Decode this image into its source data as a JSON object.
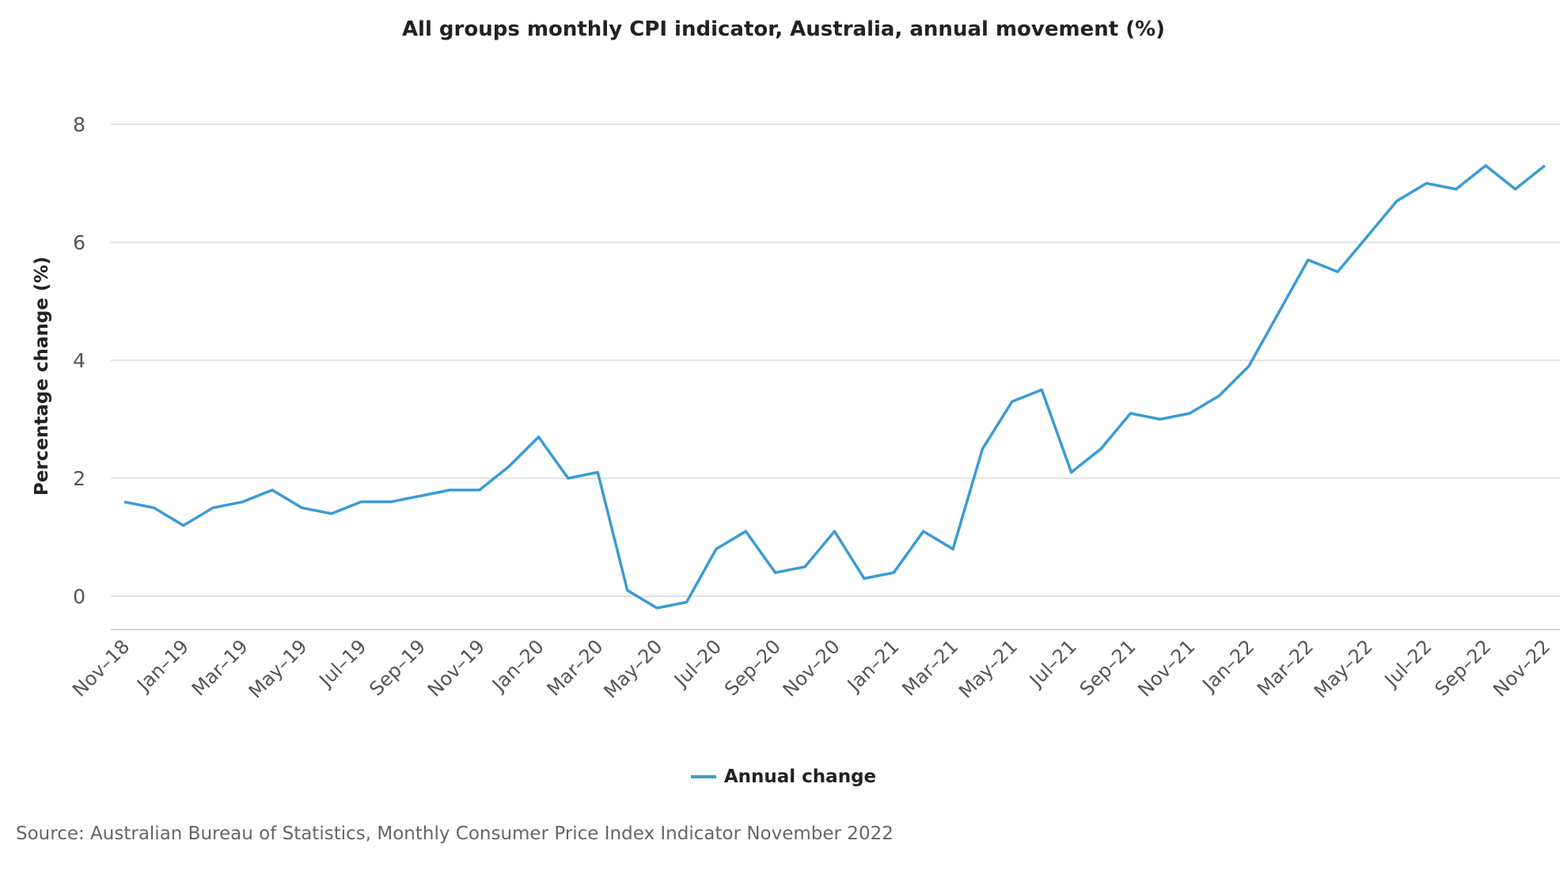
{
  "chart_data": {
    "type": "line",
    "title": "All groups monthly CPI indicator, Australia, annual movement (%)",
    "xlabel": "",
    "ylabel": "Percentage change (%)",
    "ylim": [
      -0.6,
      8
    ],
    "yticks": [
      0,
      2,
      4,
      6,
      8
    ],
    "grid": true,
    "legend": "bottom-center",
    "x": [
      "Nov-18",
      "Dec-18",
      "Jan-19",
      "Feb-19",
      "Mar-19",
      "Apr-19",
      "May-19",
      "Jun-19",
      "Jul-19",
      "Aug-19",
      "Sep-19",
      "Oct-19",
      "Nov-19",
      "Dec-19",
      "Jan-20",
      "Feb-20",
      "Mar-20",
      "Apr-20",
      "May-20",
      "Jun-20",
      "Jul-20",
      "Aug-20",
      "Sep-20",
      "Oct-20",
      "Nov-20",
      "Dec-20",
      "Jan-21",
      "Feb-21",
      "Mar-21",
      "Apr-21",
      "May-21",
      "Jun-21",
      "Jul-21",
      "Aug-21",
      "Sep-21",
      "Oct-21",
      "Nov-21",
      "Dec-21",
      "Jan-22",
      "Feb-22",
      "Mar-22",
      "Apr-22",
      "May-22",
      "Jun-22",
      "Jul-22",
      "Aug-22",
      "Sep-22",
      "Oct-22",
      "Nov-22"
    ],
    "xtick_labels": [
      "Nov–18",
      "Jan–19",
      "Mar–19",
      "May–19",
      "Jul–19",
      "Sep–19",
      "Nov–19",
      "Jan–20",
      "Mar–20",
      "May–20",
      "Jul–20",
      "Sep–20",
      "Nov–20",
      "Jan–21",
      "Mar–21",
      "May–21",
      "Jul–21",
      "Sep–21",
      "Nov–21",
      "Jan–22",
      "Mar–22",
      "May–22",
      "Jul–22",
      "Sep–22",
      "Nov–22"
    ],
    "series": [
      {
        "name": "Annual change",
        "color": "#3a9bd5",
        "values": [
          1.6,
          1.5,
          1.2,
          1.5,
          1.6,
          1.8,
          1.5,
          1.4,
          1.6,
          1.6,
          1.7,
          1.8,
          1.8,
          2.2,
          2.7,
          2.0,
          2.1,
          0.1,
          -0.2,
          -0.1,
          0.8,
          1.1,
          0.4,
          0.5,
          1.1,
          0.3,
          0.4,
          1.1,
          0.8,
          2.5,
          3.3,
          3.5,
          2.1,
          2.5,
          3.1,
          3.0,
          3.1,
          3.4,
          3.9,
          4.8,
          5.7,
          5.5,
          6.1,
          6.7,
          7.0,
          6.9,
          7.3,
          6.9,
          7.3
        ]
      }
    ]
  },
  "source": "Source: Australian Bureau of Statistics, Monthly Consumer Price Index Indicator November 2022"
}
